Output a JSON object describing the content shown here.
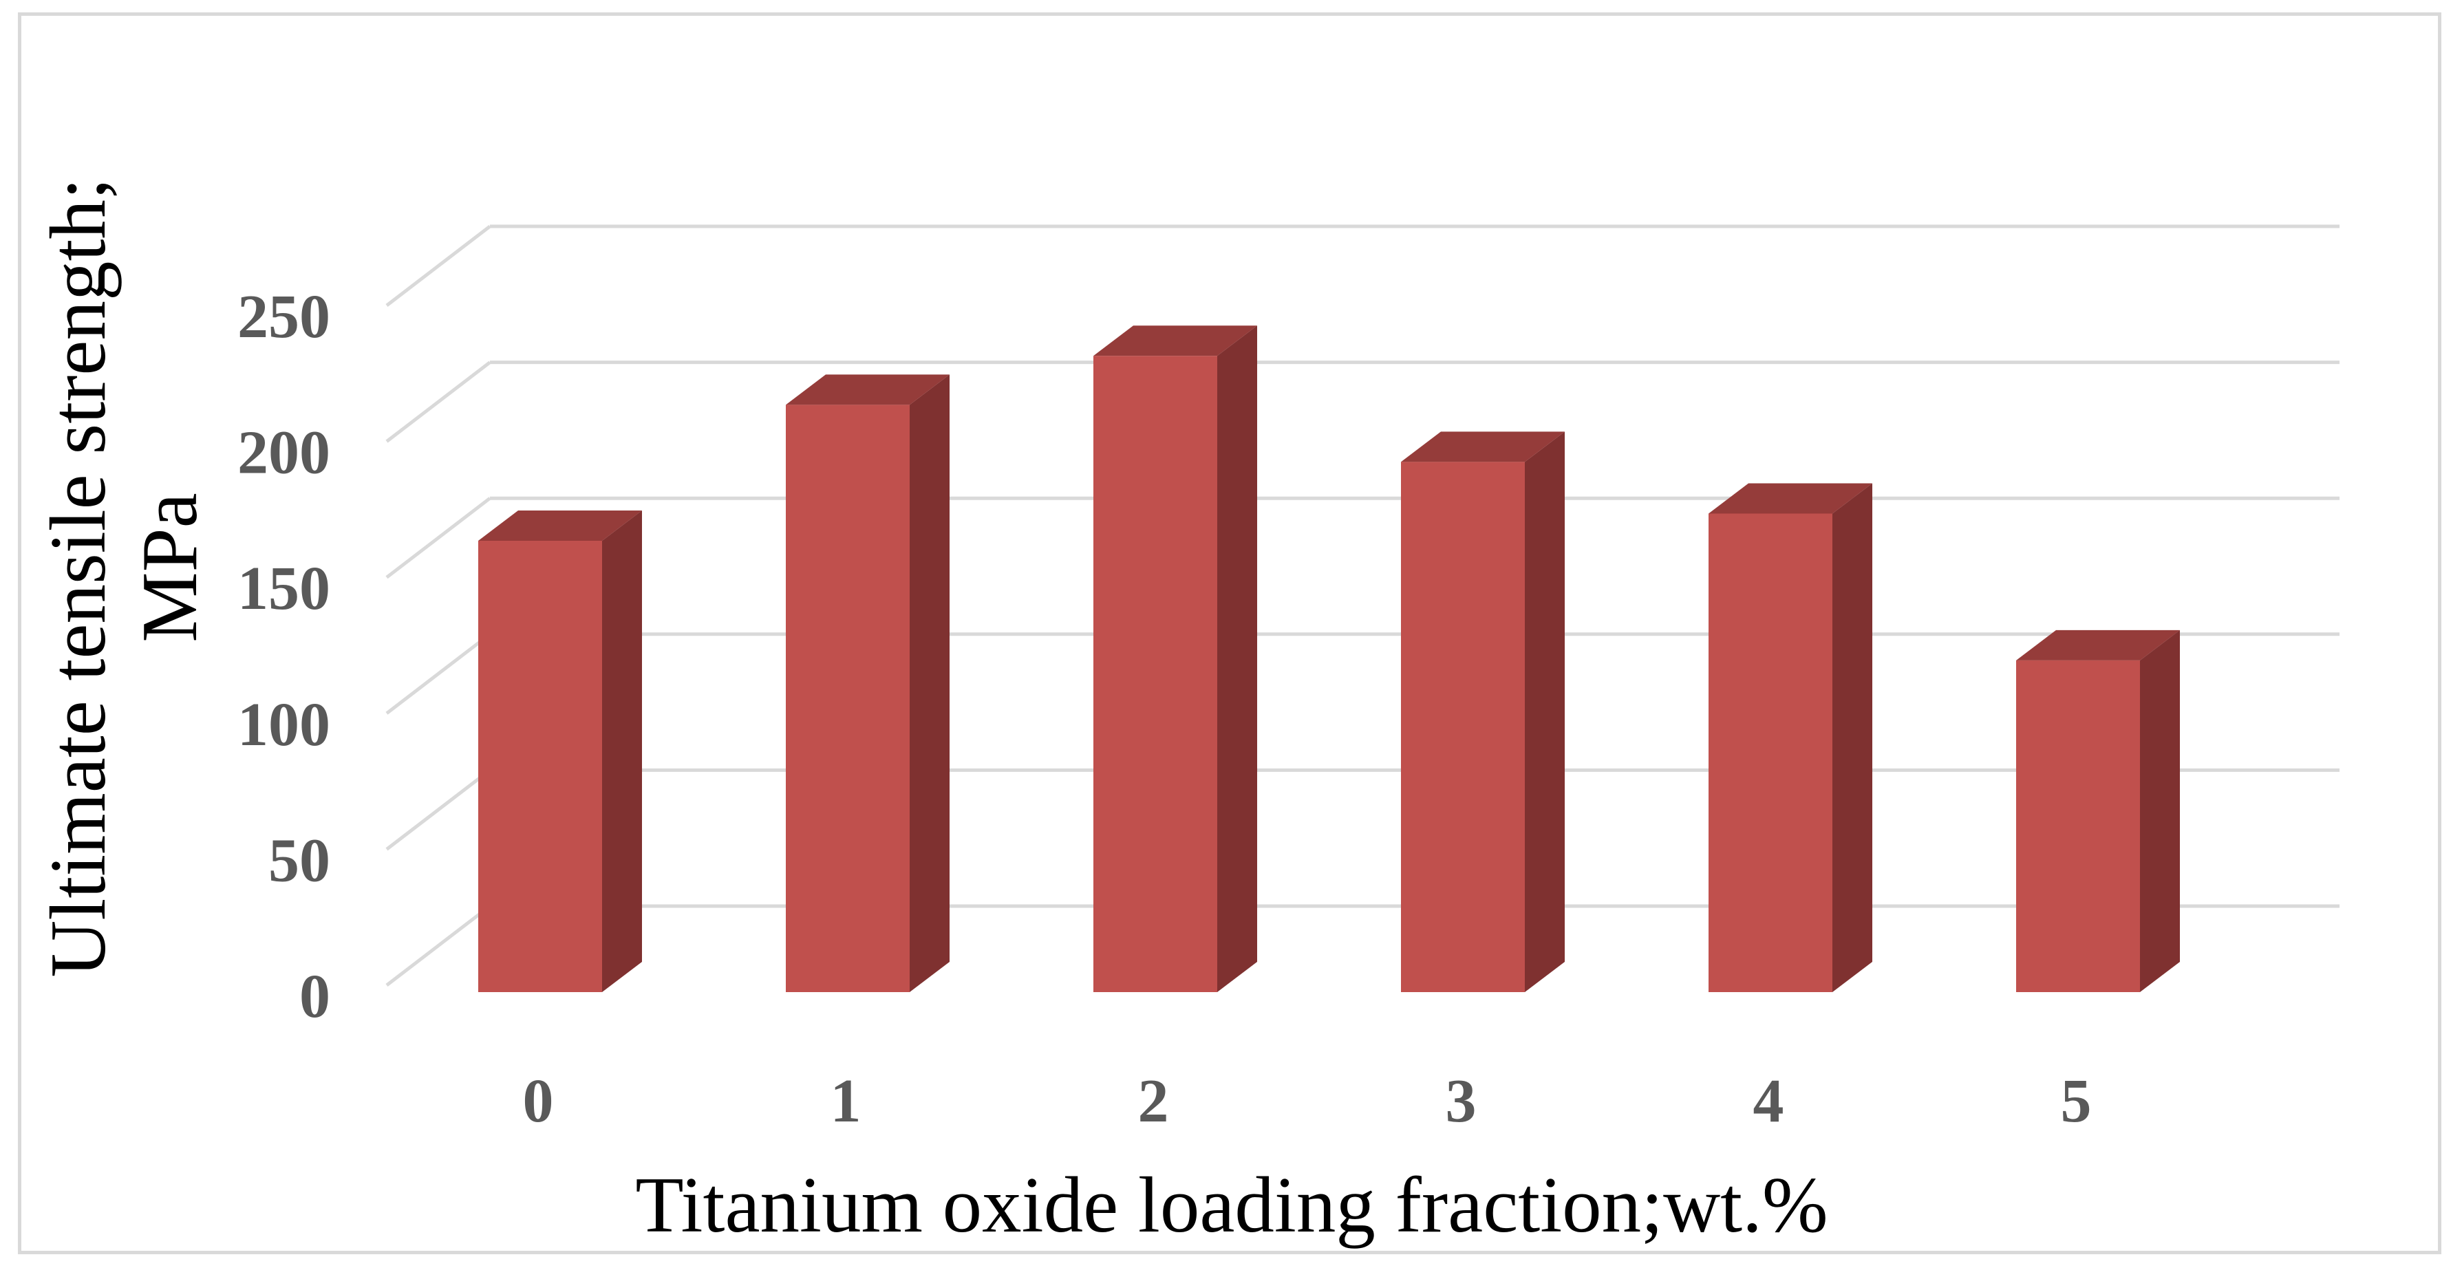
{
  "chart_data": {
    "type": "bar",
    "style": "3d-column",
    "title": "",
    "xlabel": "Titanium oxide loading fraction;wt.%",
    "ylabel_lines": [
      "Ultimate tensile strength;",
      "MPa"
    ],
    "categories": [
      "0",
      "1",
      "2",
      "3",
      "4",
      "5"
    ],
    "values": [
      166,
      216,
      234,
      195,
      176,
      122
    ],
    "ylim": [
      0,
      250
    ],
    "yticks": [
      "0",
      "50",
      "100",
      "150",
      "200",
      "250"
    ],
    "grid": true,
    "legend": "none",
    "colors": {
      "bar_front": "#c0504d",
      "bar_side": "#7f3130",
      "bar_top": "#953c3a",
      "grid": "#d9d9d9",
      "tick_text": "#595959"
    }
  }
}
